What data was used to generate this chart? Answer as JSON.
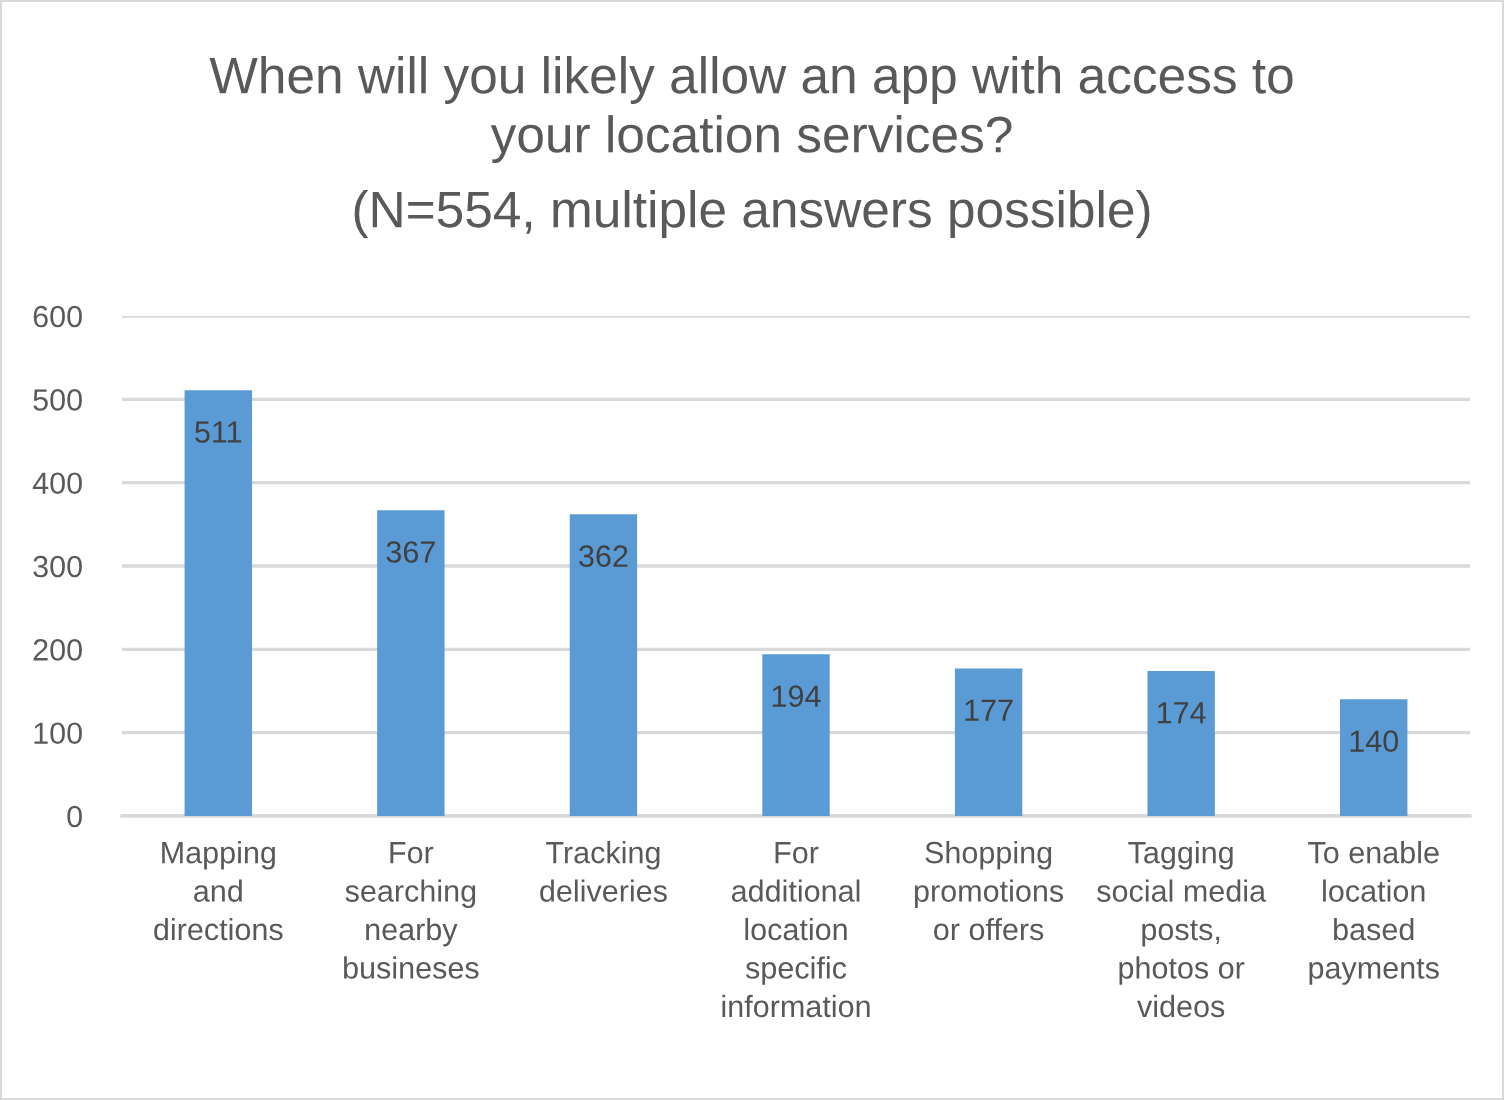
{
  "chart_data": {
    "type": "bar",
    "title": "When will you likely allow an app with access to\nyour location services?",
    "subtitle": "(N=554, multiple answers possible)",
    "categories": [
      "Mapping\nand\ndirections",
      "For\nsearching\nnearby\nbusineses",
      "Tracking\ndeliveries",
      "For\nadditional\nlocation\nspecific\ninformation",
      "Shopping\npromotions\nor offers",
      "Tagging\nsocial media\nposts,\nphotos or\nvideos",
      "To enable\nlocation\nbased\npayments"
    ],
    "values": [
      511,
      367,
      362,
      194,
      177,
      174,
      140
    ],
    "color": "#5b9bd5",
    "ylim": [
      0,
      600
    ],
    "yticks": [
      0,
      100,
      200,
      300,
      400,
      500,
      600
    ],
    "grid": "y",
    "data_labels": true
  }
}
